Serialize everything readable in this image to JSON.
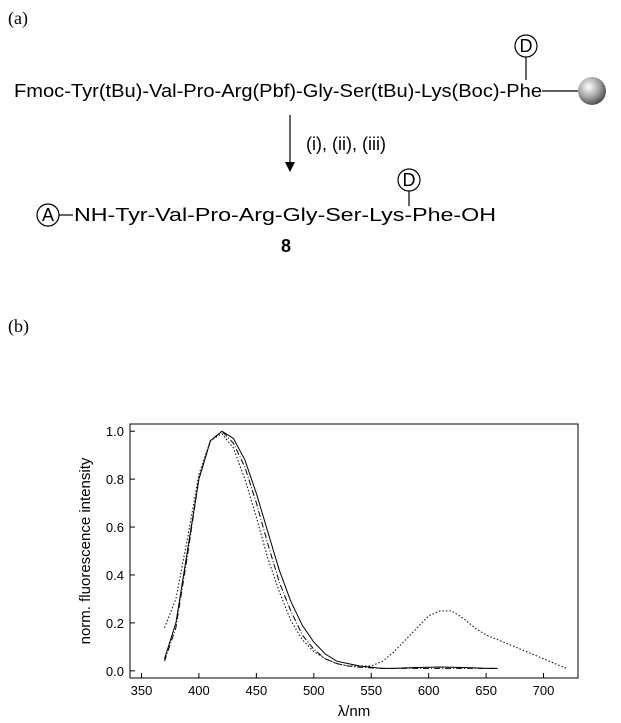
{
  "panel_a": {
    "label": "(a)",
    "scheme": {
      "start": "Fmoc-Tyr(tBu)-Val-Pro-Arg(Pbf)-Gly-Ser(tBu)-Lys(Boc)-Phe",
      "start_tag": "D",
      "conditions": "(i), (ii), (iii)",
      "product_tag_left": "A",
      "product": "NH-Tyr-Val-Pro-Arg-Gly-Ser-Lys-Phe-OH",
      "product_tag": "D",
      "compound": "8"
    }
  },
  "panel_b": {
    "label": "(b)"
  },
  "chart_data": {
    "type": "line",
    "x_label": "λ/nm",
    "y_label": "norm. fluorescence intensity",
    "x": [
      370,
      380,
      390,
      400,
      410,
      420,
      430,
      440,
      450,
      460,
      470,
      480,
      490,
      500,
      510,
      520,
      530,
      540,
      550,
      560,
      570,
      580,
      590,
      600,
      610,
      620,
      630,
      640,
      650,
      660,
      670,
      680,
      690,
      700,
      710,
      720
    ],
    "series": [
      {
        "color": "#000000",
        "dash": "none",
        "values": [
          0.05,
          0.2,
          0.5,
          0.8,
          0.96,
          1.0,
          0.97,
          0.88,
          0.74,
          0.58,
          0.42,
          0.29,
          0.19,
          0.12,
          0.07,
          0.04,
          0.03,
          0.02,
          0.015,
          0.01,
          0.01,
          0.012,
          0.014,
          0.015,
          0.016,
          0.015,
          0.014,
          0.012,
          0.01,
          0.01,
          null,
          null,
          null,
          null,
          null,
          null
        ]
      },
      {
        "color": "#000000",
        "dash": "6 2 1 2",
        "values": [
          0.04,
          0.18,
          0.48,
          0.8,
          0.96,
          1.0,
          0.95,
          0.85,
          0.7,
          0.53,
          0.37,
          0.25,
          0.15,
          0.09,
          0.05,
          0.03,
          0.02,
          0.015,
          0.012,
          0.01,
          0.01,
          0.01,
          0.01,
          0.01,
          0.01,
          0.01,
          0.01,
          0.01,
          0.01,
          0.01,
          null,
          null,
          null,
          null,
          null,
          null
        ]
      },
      {
        "color": "#000000",
        "dash": "1.5 2",
        "values": [
          0.18,
          0.3,
          0.55,
          0.82,
          0.96,
          0.99,
          0.93,
          0.8,
          0.64,
          0.47,
          0.33,
          0.21,
          0.13,
          0.08,
          0.05,
          0.03,
          0.02,
          0.02,
          0.02,
          0.04,
          0.08,
          0.13,
          0.18,
          0.23,
          0.25,
          0.25,
          0.22,
          0.18,
          0.15,
          0.13,
          0.11,
          0.09,
          0.07,
          0.05,
          0.03,
          0.01
        ]
      }
    ],
    "xlim": [
      340,
      730
    ],
    "ylim": [
      -0.03,
      1.03
    ],
    "xticks": [
      350,
      400,
      450,
      500,
      550,
      600,
      650,
      700
    ],
    "yticks": [
      {
        "value": 0,
        "label": "0.0"
      },
      0.2,
      0.4,
      0.6,
      0.8,
      {
        "value": 1,
        "label": "1.0"
      }
    ]
  }
}
